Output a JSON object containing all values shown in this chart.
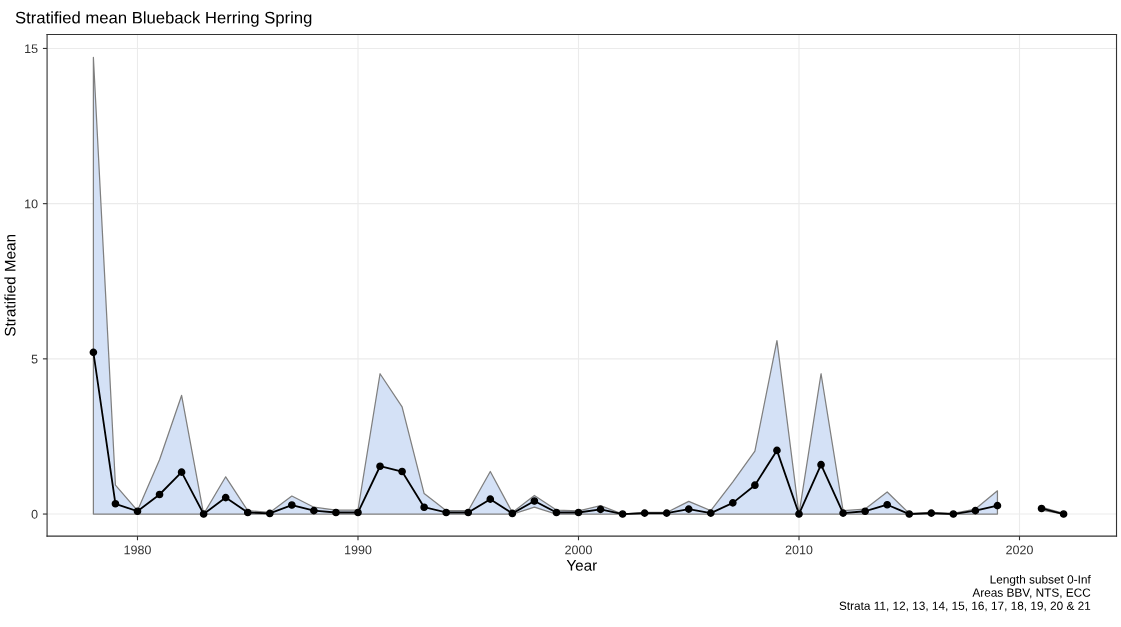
{
  "chart_data": {
    "type": "line",
    "title": "Stratified mean Blueback Herring Spring",
    "xlabel": "Year",
    "ylabel": "Stratified Mean",
    "x": [
      1978,
      1979,
      1980,
      1981,
      1982,
      1983,
      1984,
      1985,
      1986,
      1987,
      1988,
      1989,
      1990,
      1991,
      1992,
      1993,
      1994,
      1995,
      1996,
      1997,
      1998,
      1999,
      2000,
      2001,
      2002,
      2003,
      2004,
      2005,
      2006,
      2007,
      2008,
      2009,
      2010,
      2011,
      2012,
      2013,
      2014,
      2015,
      2016,
      2017,
      2018,
      2019,
      2020,
      2021,
      2022
    ],
    "series": [
      {
        "color": "#000000",
        "values": [
          5.21,
          0.33,
          0.09,
          0.63,
          1.35,
          0,
          0.53,
          0.05,
          0.02,
          0.29,
          0.11,
          0.05,
          0.05,
          1.54,
          1.37,
          0.22,
          0.05,
          0.05,
          0.48,
          0.02,
          0.42,
          0.05,
          0.05,
          0.15,
          0,
          0.03,
          0.03,
          0.16,
          0.03,
          0.36,
          0.93,
          2.05,
          0,
          1.59,
          0.03,
          0.09,
          0.3,
          0,
          0.03,
          0,
          0.11,
          0.27,
          null,
          0.18,
          0
        ],
        "lower": [
          0,
          0,
          0,
          0,
          0,
          0,
          0,
          0,
          0,
          0,
          0,
          0,
          0,
          0,
          0,
          0,
          0,
          0,
          0,
          0,
          0.22,
          0,
          0,
          0,
          0,
          0,
          0,
          0,
          0,
          0,
          0,
          0,
          0,
          0,
          0,
          0,
          0,
          0,
          0,
          0,
          0,
          0,
          null,
          0.13,
          0
        ],
        "upper": [
          14.71,
          0.93,
          0.11,
          1.75,
          3.82,
          0,
          1.2,
          0.11,
          0.05,
          0.58,
          0.22,
          0.13,
          0.13,
          4.52,
          3.45,
          0.66,
          0.11,
          0.11,
          1.37,
          0.05,
          0.6,
          0.13,
          0.1,
          0.27,
          0,
          0.05,
          0.05,
          0.41,
          0.11,
          1.04,
          2.03,
          5.59,
          0,
          4.52,
          0.11,
          0.16,
          0.71,
          0.02,
          0.05,
          0.02,
          0.16,
          0.75,
          null,
          0.22,
          0.02
        ]
      }
    ],
    "xlim": [
      1975.9,
      2024.4
    ],
    "ylim": [
      -0.71,
      15.45
    ],
    "xticks": [
      1980,
      1990,
      2000,
      2010,
      2020
    ],
    "yticks": [
      0,
      5,
      10,
      15
    ],
    "grid": true,
    "marker": "circle",
    "line_style": "solid",
    "annotations": [
      "Length subset 0-Inf",
      "Areas BBV, NTS, ECC",
      "Strata 11, 12, 13, 14, 15, 16, 17, 18, 19, 20 & 21"
    ]
  }
}
